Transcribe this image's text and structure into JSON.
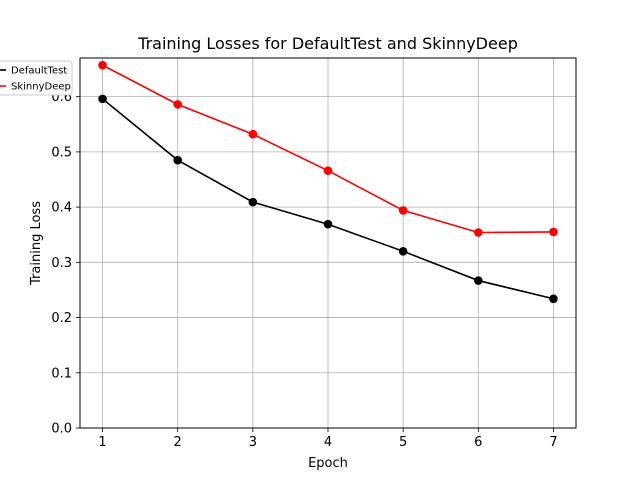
{
  "chart_data": {
    "type": "line",
    "title": "Training Losses for DefaultTest and SkinnyDeep",
    "xlabel": "Epoch",
    "ylabel": "Training Loss",
    "x": [
      1,
      2,
      3,
      4,
      5,
      6,
      7
    ],
    "xlim": [
      0.7,
      7.3
    ],
    "ylim": [
      0.0,
      0.67
    ],
    "xticks": [
      "1",
      "2",
      "3",
      "4",
      "5",
      "6",
      "7"
    ],
    "yticks": [
      "0.0",
      "0.1",
      "0.2",
      "0.3",
      "0.4",
      "0.5",
      "0.6"
    ],
    "grid": true,
    "legend_position": "top-left, outside",
    "series": [
      {
        "name": "DefaultTest",
        "color": "#000000",
        "marker": "circle",
        "values": [
          0.596,
          0.485,
          0.409,
          0.369,
          0.32,
          0.267,
          0.234
        ]
      },
      {
        "name": "SkinnyDeep",
        "color": "#ff0000",
        "marker": "circle",
        "values": [
          0.657,
          0.586,
          0.532,
          0.466,
          0.394,
          0.354,
          0.355
        ]
      }
    ]
  }
}
